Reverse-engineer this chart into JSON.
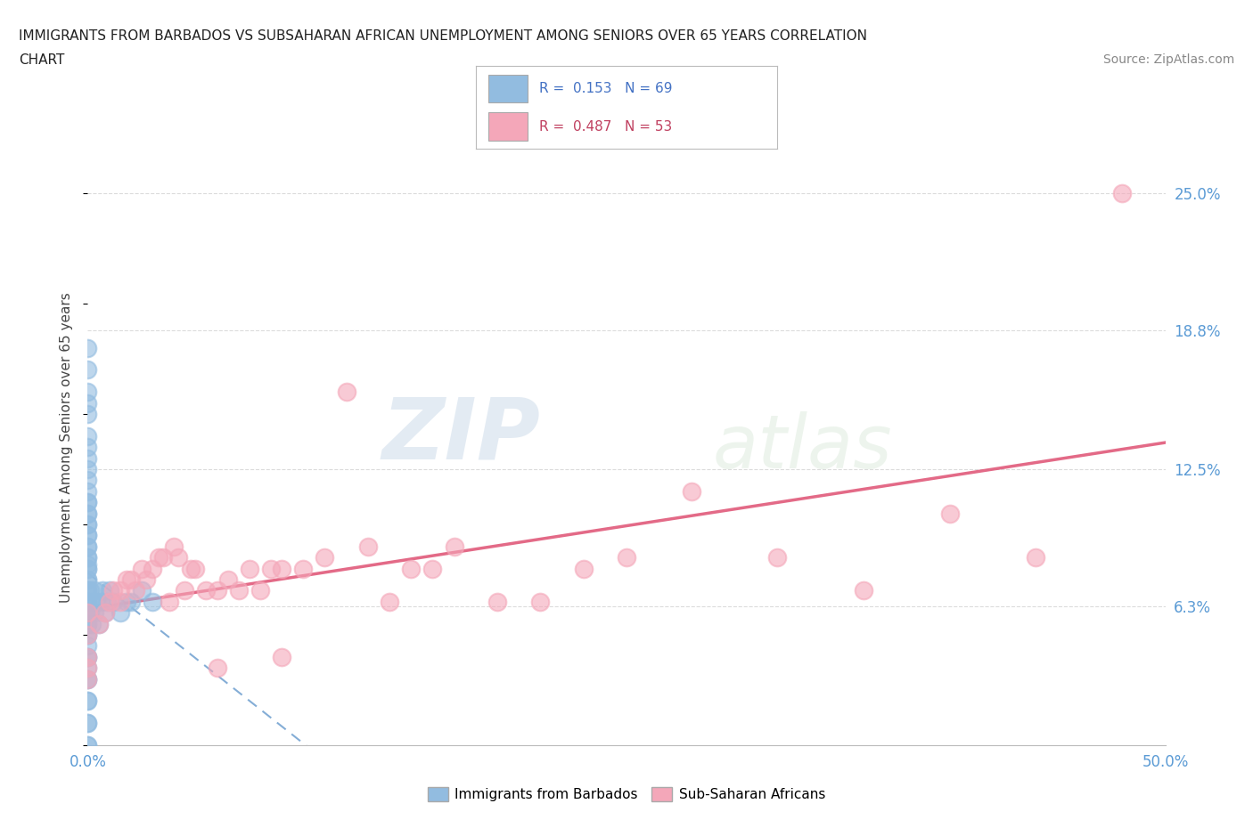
{
  "title_line1": "IMMIGRANTS FROM BARBADOS VS SUBSAHARAN AFRICAN UNEMPLOYMENT AMONG SENIORS OVER 65 YEARS CORRELATION",
  "title_line2": "CHART",
  "source_text": "Source: ZipAtlas.com",
  "ylabel": "Unemployment Among Seniors over 65 years",
  "xlim": [
    0.0,
    0.5
  ],
  "ylim": [
    -0.02,
    0.27
  ],
  "plot_ylim": [
    0.0,
    0.27
  ],
  "yticks": [
    0.0,
    0.063,
    0.125,
    0.188,
    0.25
  ],
  "ytick_labels": [
    "",
    "6.3%",
    "12.5%",
    "18.8%",
    "25.0%"
  ],
  "xticks": [
    0.0,
    0.0625,
    0.125,
    0.1875,
    0.25,
    0.3125,
    0.375,
    0.4375,
    0.5
  ],
  "xtick_labels": [
    "0.0%",
    "",
    "",
    "",
    "",
    "",
    "",
    "",
    "50.0%"
  ],
  "legend_r1": "R =  0.153   N = 69",
  "legend_r2": "R =  0.487   N = 53",
  "blue_color": "#92bce0",
  "pink_color": "#f4a7b9",
  "blue_line_color": "#6699cc",
  "pink_line_color": "#e05a7a",
  "blue_scatter_x": [
    0.0,
    0.0,
    0.0,
    0.0,
    0.0,
    0.0,
    0.0,
    0.0,
    0.0,
    0.0,
    0.0,
    0.0,
    0.0,
    0.0,
    0.0,
    0.0,
    0.0,
    0.0,
    0.0,
    0.0,
    0.0,
    0.0,
    0.0,
    0.0,
    0.0,
    0.0,
    0.0,
    0.0,
    0.0,
    0.0,
    0.0,
    0.0,
    0.0,
    0.0,
    0.0,
    0.0,
    0.0,
    0.0,
    0.0,
    0.0,
    0.0,
    0.0,
    0.0,
    0.0,
    0.0,
    0.0,
    0.0,
    0.0,
    0.0,
    0.0,
    0.001,
    0.001,
    0.002,
    0.002,
    0.003,
    0.003,
    0.004,
    0.005,
    0.006,
    0.007,
    0.008,
    0.009,
    0.01,
    0.012,
    0.015,
    0.018,
    0.02,
    0.025,
    0.03
  ],
  "blue_scatter_y": [
    0.0,
    0.0,
    0.01,
    0.01,
    0.02,
    0.02,
    0.03,
    0.03,
    0.035,
    0.04,
    0.04,
    0.045,
    0.05,
    0.05,
    0.055,
    0.055,
    0.06,
    0.06,
    0.065,
    0.065,
    0.07,
    0.07,
    0.075,
    0.075,
    0.08,
    0.08,
    0.082,
    0.085,
    0.085,
    0.09,
    0.09,
    0.095,
    0.095,
    0.1,
    0.1,
    0.105,
    0.105,
    0.11,
    0.11,
    0.115,
    0.12,
    0.125,
    0.13,
    0.135,
    0.14,
    0.15,
    0.155,
    0.16,
    0.17,
    0.18,
    0.06,
    0.07,
    0.055,
    0.065,
    0.06,
    0.07,
    0.065,
    0.055,
    0.065,
    0.07,
    0.06,
    0.065,
    0.07,
    0.065,
    0.06,
    0.065,
    0.065,
    0.07,
    0.065
  ],
  "pink_scatter_x": [
    0.0,
    0.0,
    0.0,
    0.005,
    0.008,
    0.01,
    0.012,
    0.015,
    0.015,
    0.018,
    0.02,
    0.022,
    0.025,
    0.027,
    0.03,
    0.033,
    0.035,
    0.038,
    0.04,
    0.042,
    0.045,
    0.048,
    0.05,
    0.055,
    0.06,
    0.065,
    0.07,
    0.075,
    0.08,
    0.085,
    0.09,
    0.1,
    0.11,
    0.12,
    0.13,
    0.14,
    0.15,
    0.16,
    0.17,
    0.19,
    0.21,
    0.23,
    0.25,
    0.28,
    0.32,
    0.36,
    0.4,
    0.44,
    0.0,
    0.0,
    0.06,
    0.09,
    0.48
  ],
  "pink_scatter_y": [
    0.04,
    0.05,
    0.06,
    0.055,
    0.06,
    0.065,
    0.07,
    0.07,
    0.065,
    0.075,
    0.075,
    0.07,
    0.08,
    0.075,
    0.08,
    0.085,
    0.085,
    0.065,
    0.09,
    0.085,
    0.07,
    0.08,
    0.08,
    0.07,
    0.07,
    0.075,
    0.07,
    0.08,
    0.07,
    0.08,
    0.08,
    0.08,
    0.085,
    0.16,
    0.09,
    0.065,
    0.08,
    0.08,
    0.09,
    0.065,
    0.065,
    0.08,
    0.085,
    0.115,
    0.085,
    0.07,
    0.105,
    0.085,
    0.03,
    0.035,
    0.035,
    0.04,
    0.25
  ],
  "watermark_zip": "ZIP",
  "watermark_atlas": "atlas",
  "background_color": "#ffffff",
  "grid_color": "#cccccc"
}
